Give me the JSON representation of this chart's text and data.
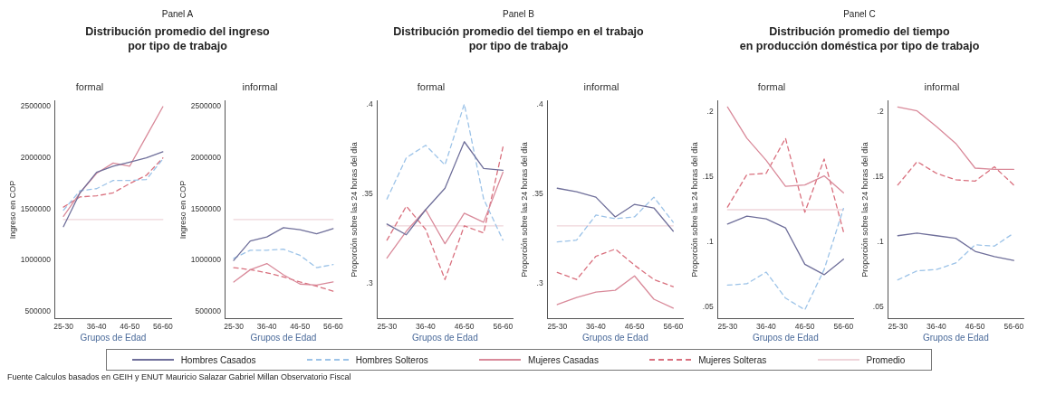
{
  "chart_data": [
    {
      "type": "line",
      "title": "formal",
      "xlabel": "Grupos de Edad",
      "ylabel": "Ingreso en COP",
      "annotations": [
        "Panel A",
        "Distribución promedio del ingreso\npor tipo de trabajo",
        "Fuente  Calculos basados en GEIH y ENUT Mauricio Salazar Gabriel Millan Observatorio Fiscal"
      ],
      "legend": "bottom",
      "categories": [
        "25-30",
        null,
        "36-40",
        null,
        "46-50",
        null,
        "56-60"
      ],
      "ylim": [
        430000,
        2560000
      ],
      "yticks": [
        500000,
        1000000,
        1500000,
        2000000,
        2500000
      ],
      "series": [
        {
          "name": "Hombres Casados",
          "color": "#6f6f9a",
          "line_style": "solid",
          "values": [
            1330000,
            1660000,
            1860000,
            1920000,
            1960000,
            2000000,
            2060000
          ]
        },
        {
          "name": "Hombres Solteros",
          "color": "#9cc3e8",
          "line_style": "dashed",
          "values": [
            1490000,
            1680000,
            1700000,
            1780000,
            1780000,
            1790000,
            1990000
          ]
        },
        {
          "name": "Mujeres Casadas",
          "color": "#d98a9a",
          "line_style": "solid",
          "values": [
            1430000,
            1660000,
            1850000,
            1950000,
            1920000,
            2210000,
            2500000
          ]
        },
        {
          "name": "Mujeres Solteras",
          "color": "#d9707e",
          "line_style": "dashed",
          "values": [
            1520000,
            1620000,
            1630000,
            1660000,
            1750000,
            1830000,
            2000000
          ]
        },
        {
          "name": "Promedio",
          "color": "#efd5da",
          "line_style": "solid",
          "values": [
            1400000,
            1400000,
            1400000,
            1400000,
            1400000,
            1400000,
            1400000
          ]
        }
      ]
    },
    {
      "type": "line",
      "title": "informal",
      "xlabel": "Grupos de Edad",
      "ylabel": "Ingreso en COP",
      "categories": [
        "25-30",
        null,
        "36-40",
        null,
        "46-50",
        null,
        "56-60"
      ],
      "ylim": [
        430000,
        2560000
      ],
      "yticks": [
        500000,
        1000000,
        1500000,
        2000000,
        2500000
      ],
      "series": [
        {
          "name": "Hombres Casados",
          "color": "#6f6f9a",
          "line_style": "solid",
          "values": [
            1000000,
            1190000,
            1230000,
            1320000,
            1300000,
            1260000,
            1310000
          ]
        },
        {
          "name": "Hombres Solteros",
          "color": "#9cc3e8",
          "line_style": "dashed",
          "values": [
            1020000,
            1100000,
            1100000,
            1110000,
            1050000,
            930000,
            960000
          ]
        },
        {
          "name": "Mujeres Casadas",
          "color": "#d98a9a",
          "line_style": "solid",
          "values": [
            790000,
            910000,
            970000,
            860000,
            770000,
            760000,
            790000
          ]
        },
        {
          "name": "Mujeres Solteras",
          "color": "#d9707e",
          "line_style": "dashed",
          "values": [
            930000,
            910000,
            880000,
            840000,
            790000,
            750000,
            700000
          ]
        },
        {
          "name": "Promedio",
          "color": "#efd5da",
          "line_style": "solid",
          "values": [
            1400000,
            1400000,
            1400000,
            1400000,
            1400000,
            1400000,
            1400000
          ]
        }
      ]
    },
    {
      "type": "line",
      "title": "formal",
      "xlabel": "Grupos de Edad",
      "ylabel": "Proporción sobre las 24 horas del día",
      "annotations": [
        "Panel B",
        "Distribución promedio del tiempo en el trabajo\npor tipo de trabajo"
      ],
      "categories": [
        "25-30",
        null,
        "36-40",
        null,
        "46-50",
        null,
        "56-60"
      ],
      "ylim": [
        0.28,
        0.402
      ],
      "yticks": [
        {
          "value": 0.3,
          "label": ".3"
        },
        {
          "value": 0.35,
          "label": ".35"
        },
        {
          "value": 0.4,
          "label": ".4"
        }
      ],
      "series": [
        {
          "name": "Hombres Casados",
          "color": "#6f6f9a",
          "line_style": "solid",
          "values": [
            0.333,
            0.327,
            0.341,
            0.353,
            0.379,
            0.364,
            0.363
          ]
        },
        {
          "name": "Hombres Solteros",
          "color": "#9cc3e8",
          "line_style": "dashed",
          "values": [
            0.347,
            0.37,
            0.377,
            0.366,
            0.4,
            0.347,
            0.324
          ]
        },
        {
          "name": "Mujeres Casadas",
          "color": "#d98a9a",
          "line_style": "solid",
          "values": [
            0.314,
            0.329,
            0.341,
            0.322,
            0.339,
            0.334,
            0.362
          ]
        },
        {
          "name": "Mujeres Solteras",
          "color": "#d9707e",
          "line_style": "dashed",
          "values": [
            0.324,
            0.343,
            0.33,
            0.302,
            0.332,
            0.328,
            0.376
          ]
        },
        {
          "name": "Promedio",
          "color": "#efd5da",
          "line_style": "solid",
          "values": [
            0.332,
            0.332,
            0.332,
            0.332,
            0.332,
            0.332,
            0.332
          ]
        }
      ]
    },
    {
      "type": "line",
      "title": "informal",
      "xlabel": "Grupos de Edad",
      "ylabel": "Proporción sobre las 24 horas del día",
      "categories": [
        "25-30",
        null,
        "36-40",
        null,
        "46-50",
        null,
        "56-60"
      ],
      "ylim": [
        0.28,
        0.402
      ],
      "yticks": [
        {
          "value": 0.3,
          "label": ".3"
        },
        {
          "value": 0.35,
          "label": ".35"
        },
        {
          "value": 0.4,
          "label": ".4"
        }
      ],
      "series": [
        {
          "name": "Hombres Casados",
          "color": "#6f6f9a",
          "line_style": "solid",
          "values": [
            0.353,
            0.351,
            0.348,
            0.337,
            0.344,
            0.342,
            0.329
          ]
        },
        {
          "name": "Hombres Solteros",
          "color": "#9cc3e8",
          "line_style": "dashed",
          "values": [
            0.323,
            0.324,
            0.338,
            0.336,
            0.337,
            0.348,
            0.334
          ]
        },
        {
          "name": "Mujeres Casadas",
          "color": "#d98a9a",
          "line_style": "solid",
          "values": [
            0.288,
            0.292,
            0.295,
            0.296,
            0.304,
            0.291,
            0.286
          ]
        },
        {
          "name": "Mujeres Solteras",
          "color": "#d9707e",
          "line_style": "dashed",
          "values": [
            0.306,
            0.302,
            0.315,
            0.319,
            0.31,
            0.302,
            0.298
          ]
        },
        {
          "name": "Promedio",
          "color": "#efd5da",
          "line_style": "solid",
          "values": [
            0.332,
            0.332,
            0.332,
            0.332,
            0.332,
            0.332,
            0.332
          ]
        }
      ]
    },
    {
      "type": "line",
      "title": "formal",
      "xlabel": "Grupos de Edad",
      "ylabel": "Proporción sobre las 24 horas del día",
      "annotations": [
        "Panel C",
        "Distribución promedio del tiempo\nen producción doméstica por tipo de trabajo"
      ],
      "categories": [
        "25-30",
        null,
        "36-40",
        null,
        "46-50",
        null,
        "56-60"
      ],
      "ylim": [
        0.041,
        0.209
      ],
      "yticks": [
        {
          "value": 0.05,
          "label": ".05"
        },
        {
          "value": 0.1,
          "label": ".1"
        },
        {
          "value": 0.15,
          "label": ".15"
        },
        {
          "value": 0.2,
          "label": ".2"
        }
      ],
      "series": [
        {
          "name": "Hombres Casados",
          "color": "#6f6f9a",
          "line_style": "solid",
          "values": [
            0.114,
            0.12,
            0.118,
            0.111,
            0.083,
            0.075,
            0.087
          ]
        },
        {
          "name": "Hombres Solteros",
          "color": "#9cc3e8",
          "line_style": "dashed",
          "values": [
            0.067,
            0.068,
            0.077,
            0.057,
            0.048,
            0.079,
            0.126
          ]
        },
        {
          "name": "Mujeres Casadas",
          "color": "#d98a9a",
          "line_style": "solid",
          "values": [
            0.204,
            0.18,
            0.163,
            0.143,
            0.144,
            0.151,
            0.138
          ]
        },
        {
          "name": "Mujeres Solteras",
          "color": "#d9707e",
          "line_style": "dashed",
          "values": [
            0.127,
            0.152,
            0.153,
            0.18,
            0.123,
            0.164,
            0.108
          ]
        },
        {
          "name": "Promedio",
          "color": "#efd5da",
          "line_style": "solid",
          "values": [
            0.125,
            0.125,
            0.125,
            0.125,
            0.125,
            0.125,
            0.125
          ]
        }
      ]
    },
    {
      "type": "line",
      "title": "informal",
      "xlabel": "Grupos de Edad",
      "ylabel": "Proporción sobre las 24 horas del día",
      "categories": [
        "25-30",
        null,
        "36-40",
        null,
        "46-50",
        null,
        "56-60"
      ],
      "ylim": [
        0.041,
        0.209
      ],
      "yticks": [
        {
          "value": 0.05,
          "label": ".05"
        },
        {
          "value": 0.1,
          "label": ".1"
        },
        {
          "value": 0.15,
          "label": ".15"
        },
        {
          "value": 0.2,
          "label": ".2"
        }
      ],
      "series": [
        {
          "name": "Hombres Casados",
          "color": "#6f6f9a",
          "line_style": "solid",
          "values": [
            0.105,
            0.107,
            0.105,
            0.103,
            0.093,
            0.089,
            0.086
          ]
        },
        {
          "name": "Hombres Solteros",
          "color": "#9cc3e8",
          "line_style": "dashed",
          "values": [
            0.071,
            0.078,
            0.079,
            0.084,
            0.098,
            0.097,
            0.107
          ]
        },
        {
          "name": "Mujeres Casadas",
          "color": "#d98a9a",
          "line_style": "solid",
          "values": [
            0.204,
            0.201,
            0.189,
            0.176,
            0.157,
            0.156,
            0.156
          ]
        },
        {
          "name": "Mujeres Solteras",
          "color": "#d9707e",
          "line_style": "dashed",
          "values": [
            0.144,
            0.162,
            0.153,
            0.148,
            0.147,
            0.158,
            0.144
          ]
        }
      ]
    }
  ]
}
